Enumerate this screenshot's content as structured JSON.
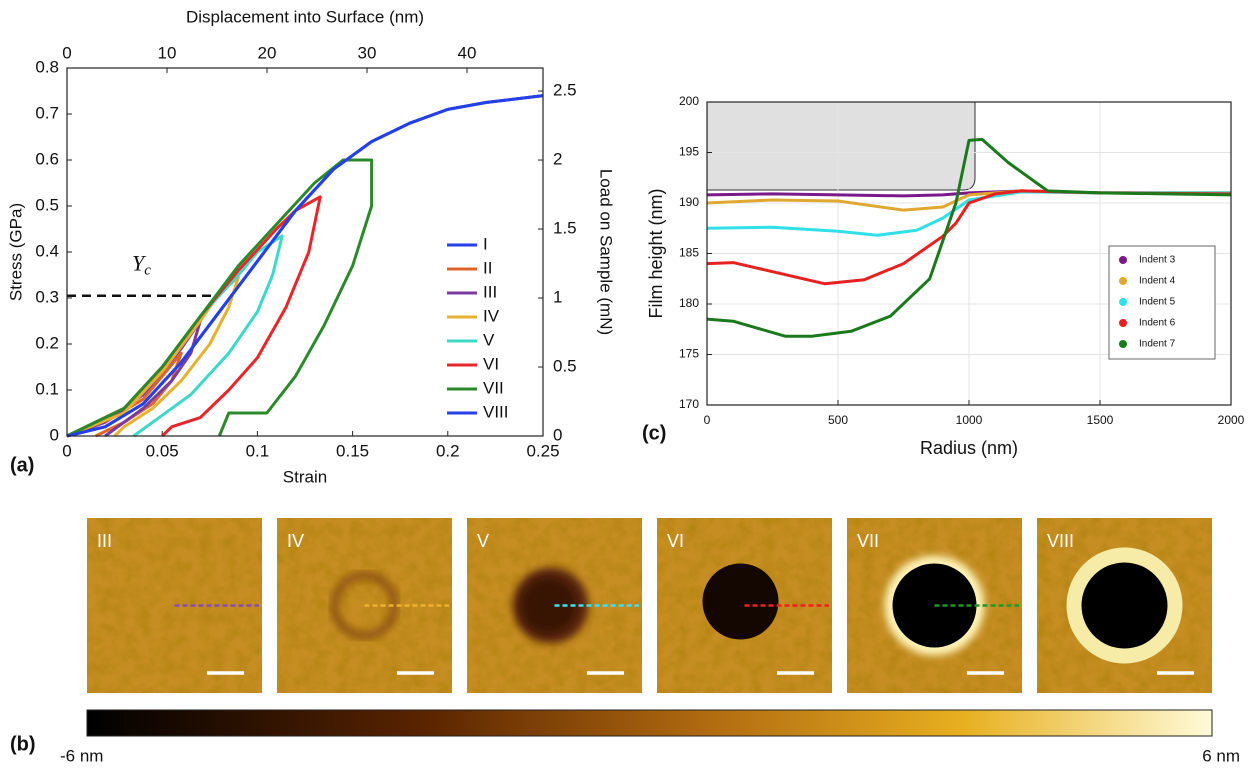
{
  "chart_data": [
    {
      "type": "line",
      "panel_label": "(a)",
      "x_label": "Strain",
      "y_label": "Stress (GPa)",
      "x2_label": "Displacement into Surface (nm)",
      "y2_label": "Load on Sample (mN)",
      "xlim": [
        0,
        0.25
      ],
      "xticks": [
        0,
        0.05,
        0.1,
        0.15,
        0.2,
        0.25
      ],
      "ylim": [
        0,
        0.8
      ],
      "yticks": [
        0,
        0.1,
        0.2,
        0.3,
        0.4,
        0.5,
        0.6,
        0.7,
        0.8
      ],
      "x2lim": [
        0,
        47.6
      ],
      "x2ticks": [
        0,
        10,
        20,
        30,
        40
      ],
      "y2lim": [
        0,
        2.667
      ],
      "y2ticks": [
        0,
        0.5,
        1,
        1.5,
        2,
        2.5
      ],
      "grid": false,
      "legend": "right",
      "reference_line": {
        "y": 0.305,
        "x_end": 0.08,
        "label": "Y",
        "label_subscript": "c"
      },
      "series": [
        {
          "name": "I",
          "color": "#2540e8",
          "x": [
            0,
            0.02,
            0.04,
            0.06,
            0.08,
            0.1,
            0.12,
            0.14,
            0.16,
            0.18,
            0.2,
            0.22,
            0.25
          ],
          "values": [
            0,
            0.02,
            0.07,
            0.16,
            0.27,
            0.38,
            0.49,
            0.58,
            0.64,
            0.68,
            0.71,
            0.725,
            0.74
          ]
        },
        {
          "name": "II",
          "color": "#e0642a",
          "x": [
            0,
            0.02,
            0.04,
            0.06,
            0.055,
            0.045,
            0.03,
            0.015
          ],
          "values": [
            0,
            0.03,
            0.08,
            0.18,
            0.12,
            0.07,
            0.03,
            0
          ]
        },
        {
          "name": "III",
          "color": "#7a3aa0",
          "x": [
            0,
            0.02,
            0.04,
            0.06,
            0.07,
            0.065,
            0.055,
            0.04,
            0.02
          ],
          "values": [
            0,
            0.03,
            0.09,
            0.19,
            0.25,
            0.18,
            0.12,
            0.06,
            0
          ]
        },
        {
          "name": "IV",
          "color": "#e8b030",
          "x": [
            0,
            0.03,
            0.05,
            0.07,
            0.08,
            0.09,
            0.085,
            0.075,
            0.06,
            0.045,
            0.03,
            0.025
          ],
          "values": [
            0,
            0.05,
            0.14,
            0.25,
            0.31,
            0.345,
            0.28,
            0.2,
            0.12,
            0.06,
            0.02,
            0
          ]
        },
        {
          "name": "V",
          "color": "#3dd8c8",
          "x": [
            0,
            0.03,
            0.05,
            0.07,
            0.09,
            0.1,
            0.113,
            0.108,
            0.1,
            0.085,
            0.065,
            0.045,
            0.035
          ],
          "values": [
            0,
            0.06,
            0.15,
            0.26,
            0.35,
            0.4,
            0.435,
            0.35,
            0.27,
            0.18,
            0.09,
            0.03,
            0
          ]
        },
        {
          "name": "VI",
          "color": "#e8262a",
          "x": [
            0,
            0.03,
            0.05,
            0.07,
            0.09,
            0.11,
            0.12,
            0.133,
            0.127,
            0.115,
            0.1,
            0.085,
            0.07,
            0.055,
            0.05
          ],
          "values": [
            0,
            0.06,
            0.15,
            0.26,
            0.36,
            0.45,
            0.49,
            0.52,
            0.4,
            0.28,
            0.17,
            0.1,
            0.04,
            0.02,
            0
          ]
        },
        {
          "name": "VII",
          "color": "#2a8a2a",
          "x": [
            0,
            0.03,
            0.05,
            0.07,
            0.09,
            0.11,
            0.13,
            0.145,
            0.16,
            0.16,
            0.15,
            0.135,
            0.12,
            0.105,
            0.1,
            0.085,
            0.08
          ],
          "values": [
            0,
            0.06,
            0.15,
            0.26,
            0.37,
            0.46,
            0.55,
            0.6,
            0.6,
            0.5,
            0.37,
            0.24,
            0.13,
            0.05,
            0.05,
            0.05,
            0
          ]
        },
        {
          "name": "VIII",
          "color": "#2540e8",
          "x": [
            0,
            0.02,
            0.04,
            0.06,
            0.08,
            0.1,
            0.12,
            0.14,
            0.16,
            0.18,
            0.2,
            0.22,
            0.25
          ],
          "values": [
            0,
            0.02,
            0.07,
            0.16,
            0.27,
            0.38,
            0.49,
            0.58,
            0.64,
            0.68,
            0.71,
            0.725,
            0.74
          ]
        }
      ]
    },
    {
      "type": "line",
      "panel_label": "(c)",
      "x_label": "Radius (nm)",
      "y_label": "Film height (nm)",
      "xlim": [
        0,
        2000
      ],
      "xticks": [
        0,
        500,
        1000,
        1500,
        2000
      ],
      "ylim": [
        170,
        200
      ],
      "yticks": [
        170,
        175,
        180,
        185,
        190,
        195,
        200
      ],
      "grid": true,
      "legend": "lower right",
      "series": [
        {
          "name": "Indent 3",
          "color": "#7a1a8a",
          "x": [
            0,
            250,
            500,
            750,
            900,
            1000,
            1200,
            1500,
            2000
          ],
          "values": [
            190.8,
            190.9,
            190.8,
            190.7,
            190.8,
            191,
            191.2,
            191,
            191
          ]
        },
        {
          "name": "Indent 4",
          "color": "#e0a830",
          "x": [
            0,
            250,
            500,
            750,
            900,
            1000,
            1200,
            1500,
            2000
          ],
          "values": [
            190,
            190.3,
            190.2,
            189.3,
            189.6,
            190.8,
            191.2,
            191,
            191
          ]
        },
        {
          "name": "Indent 5",
          "color": "#30e0e8",
          "x": [
            0,
            250,
            500,
            650,
            800,
            900,
            1000,
            1200,
            1500,
            2000
          ],
          "values": [
            187.5,
            187.6,
            187.2,
            186.8,
            187.3,
            188.5,
            190.3,
            191.1,
            191,
            191
          ]
        },
        {
          "name": "Indent 6",
          "color": "#e82020",
          "x": [
            0,
            100,
            250,
            450,
            600,
            750,
            900,
            950,
            1000,
            1100,
            1200,
            1500,
            2000
          ],
          "values": [
            184,
            184.1,
            183.2,
            182,
            182.4,
            184,
            186.7,
            188,
            190,
            190.9,
            191.2,
            191,
            190.9
          ]
        },
        {
          "name": "Indent 7",
          "color": "#1a7a1a",
          "x": [
            0,
            100,
            300,
            400,
            550,
            700,
            850,
            950,
            1000,
            1050,
            1150,
            1300,
            1500,
            2000
          ],
          "values": [
            178.5,
            178.3,
            176.8,
            176.8,
            177.3,
            178.8,
            182.5,
            190,
            196.2,
            196.3,
            194,
            191.2,
            191,
            190.8
          ]
        }
      ]
    }
  ],
  "afm_panel": {
    "panel_label": "(b)",
    "images": [
      {
        "label": "III",
        "line_color": "#8a4ab8"
      },
      {
        "label": "IV",
        "line_color": "#f0b030"
      },
      {
        "label": "V",
        "line_color": "#40e0f0"
      },
      {
        "label": "VI",
        "line_color": "#f02020"
      },
      {
        "label": "VII",
        "line_color": "#1a9a2a"
      },
      {
        "label": "VIII",
        "line_color": null
      }
    ],
    "colorbar": {
      "min_label": "-6 nm",
      "max_label": "6 nm"
    }
  }
}
